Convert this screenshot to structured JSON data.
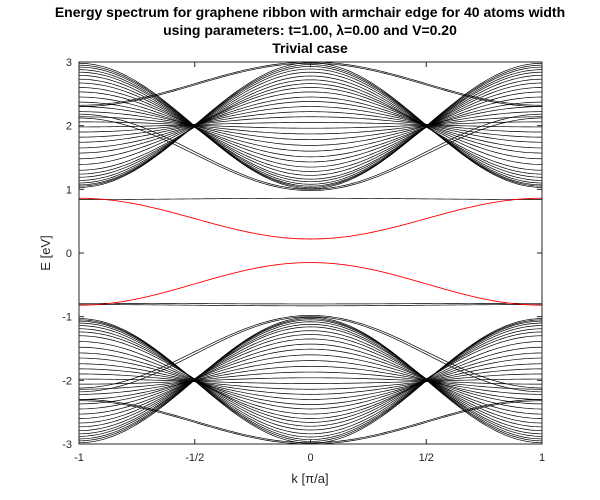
{
  "chart_data": {
    "type": "line",
    "title_lines": [
      "Energy spectrum for graphene ribbon with armchair edge for 40 atoms width",
      "using parameters: t=1.00, λ=0.00 and V=0.20",
      "Trivial case"
    ],
    "xlabel": "k [π/a]",
    "ylabel": "E [eV]",
    "xlim": [
      -1,
      1
    ],
    "ylim": [
      -3,
      3
    ],
    "x_ticks": [
      -1,
      -0.5,
      0,
      0.5,
      1
    ],
    "x_tick_labels": [
      "-1",
      "-1/2",
      "0",
      "1/2",
      "1"
    ],
    "y_ticks": [
      -3,
      -2,
      -1,
      0,
      1,
      2,
      3
    ],
    "y_tick_labels": [
      "-3",
      "-2",
      "-1",
      "0",
      "1",
      "2",
      "3"
    ],
    "grid": false,
    "band_color": "#000000",
    "edge_band_color": "#ff0000",
    "bulk_bands_conduction": [
      {
        "e0": 1.01,
        "e_edge": 2.98
      },
      {
        "e0": 1.03,
        "e_edge": 2.95
      },
      {
        "e0": 1.05,
        "e_edge": 2.92
      },
      {
        "e0": 1.08,
        "e_edge": 2.88
      },
      {
        "e0": 1.12,
        "e_edge": 2.84
      },
      {
        "e0": 1.16,
        "e_edge": 2.79
      },
      {
        "e0": 1.22,
        "e_edge": 2.73
      },
      {
        "e0": 1.28,
        "e_edge": 2.67
      },
      {
        "e0": 1.35,
        "e_edge": 2.6
      },
      {
        "e0": 1.43,
        "e_edge": 2.53
      },
      {
        "e0": 1.51,
        "e_edge": 2.45
      },
      {
        "e0": 1.6,
        "e_edge": 2.37
      },
      {
        "e0": 1.69,
        "e_edge": 2.3
      },
      {
        "e0": 1.78,
        "e_edge": 2.22
      },
      {
        "e0": 1.87,
        "e_edge": 2.14
      },
      {
        "e0": 1.96,
        "e_edge": 2.06
      },
      {
        "e0": 2.05,
        "e_edge": 1.98
      },
      {
        "e0": 2.14,
        "e_edge": 1.9
      },
      {
        "e0": 2.22,
        "e_edge": 1.82
      },
      {
        "e0": 2.3,
        "e_edge": 1.74
      },
      {
        "e0": 2.38,
        "e_edge": 1.65
      },
      {
        "e0": 2.45,
        "e_edge": 1.57
      },
      {
        "e0": 2.53,
        "e_edge": 1.48
      },
      {
        "e0": 2.6,
        "e_edge": 1.39
      },
      {
        "e0": 2.66,
        "e_edge": 1.3
      },
      {
        "e0": 2.72,
        "e_edge": 1.24
      },
      {
        "e0": 2.78,
        "e_edge": 1.19
      },
      {
        "e0": 2.84,
        "e_edge": 1.14
      },
      {
        "e0": 2.89,
        "e_edge": 1.1
      },
      {
        "e0": 2.93,
        "e_edge": 1.07
      },
      {
        "e0": 2.96,
        "e_edge": 1.05
      },
      {
        "e0": 2.99,
        "e_edge": 1.03
      },
      {
        "e0": 3.0,
        "e_edge": 2.32
      },
      {
        "e0": 2.98,
        "e_edge": 2.3
      },
      {
        "e0": 1.0,
        "e_edge": 2.18
      },
      {
        "e0": 0.98,
        "e_edge": 2.12
      }
    ],
    "bulk_bands_valence": [
      {
        "e0": -1.01,
        "e_edge": -2.98
      },
      {
        "e0": -1.03,
        "e_edge": -2.95
      },
      {
        "e0": -1.05,
        "e_edge": -2.92
      },
      {
        "e0": -1.08,
        "e_edge": -2.88
      },
      {
        "e0": -1.12,
        "e_edge": -2.84
      },
      {
        "e0": -1.16,
        "e_edge": -2.79
      },
      {
        "e0": -1.22,
        "e_edge": -2.73
      },
      {
        "e0": -1.28,
        "e_edge": -2.67
      },
      {
        "e0": -1.35,
        "e_edge": -2.6
      },
      {
        "e0": -1.43,
        "e_edge": -2.53
      },
      {
        "e0": -1.51,
        "e_edge": -2.45
      },
      {
        "e0": -1.6,
        "e_edge": -2.37
      },
      {
        "e0": -1.69,
        "e_edge": -2.3
      },
      {
        "e0": -1.78,
        "e_edge": -2.22
      },
      {
        "e0": -1.87,
        "e_edge": -2.14
      },
      {
        "e0": -1.96,
        "e_edge": -2.06
      },
      {
        "e0": -2.05,
        "e_edge": -1.98
      },
      {
        "e0": -2.14,
        "e_edge": -1.9
      },
      {
        "e0": -2.22,
        "e_edge": -1.82
      },
      {
        "e0": -2.3,
        "e_edge": -1.74
      },
      {
        "e0": -2.38,
        "e_edge": -1.65
      },
      {
        "e0": -2.45,
        "e_edge": -1.57
      },
      {
        "e0": -2.53,
        "e_edge": -1.48
      },
      {
        "e0": -2.6,
        "e_edge": -1.39
      },
      {
        "e0": -2.66,
        "e_edge": -1.3
      },
      {
        "e0": -2.72,
        "e_edge": -1.24
      },
      {
        "e0": -2.78,
        "e_edge": -1.19
      },
      {
        "e0": -2.84,
        "e_edge": -1.14
      },
      {
        "e0": -2.89,
        "e_edge": -1.1
      },
      {
        "e0": -2.93,
        "e_edge": -1.07
      },
      {
        "e0": -2.96,
        "e_edge": -1.05
      },
      {
        "e0": -2.99,
        "e_edge": -1.03
      },
      {
        "e0": -3.0,
        "e_edge": -2.32
      },
      {
        "e0": -2.98,
        "e_edge": -2.3
      },
      {
        "e0": -1.0,
        "e_edge": -2.18
      },
      {
        "e0": -0.98,
        "e_edge": -2.12
      }
    ],
    "flat_bands": [
      {
        "e0": 0.86,
        "e_edge": 0.84
      },
      {
        "e0": -0.83,
        "e_edge": -0.81
      },
      {
        "e0": -0.8,
        "e_edge": -0.79
      }
    ],
    "edge_bands": [
      {
        "name": "",
        "e0": 0.22,
        "e_edge": 0.86
      },
      {
        "name": "",
        "e0": -0.15,
        "e_edge": -0.82
      }
    ]
  }
}
